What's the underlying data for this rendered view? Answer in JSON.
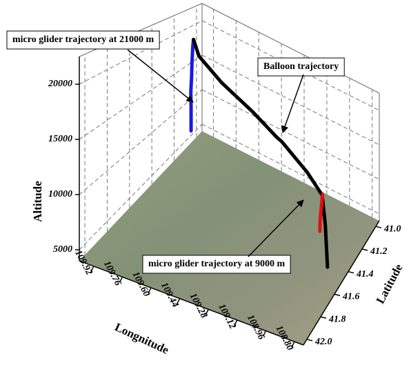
{
  "chart_data": {
    "type": "line3d",
    "xlabel": "Longnitude",
    "ylabel": "Latitude",
    "zlabel": "Altitude",
    "xlim": [
      110.0,
      108.75
    ],
    "ylim": [
      40.95,
      42.05
    ],
    "zlim": [
      4000,
      22500
    ],
    "xticks": [
      109.92,
      109.76,
      {
        "value": 109.6,
        "label": "109.60"
      },
      109.44,
      109.28,
      109.12,
      108.96,
      {
        "value": 108.8,
        "label": "108.80"
      }
    ],
    "yticks": [
      {
        "value": 41,
        "label": "41.0"
      },
      41.2,
      41.4,
      41.6,
      41.8,
      {
        "value": 42,
        "label": "42.0"
      }
    ],
    "zticks": [
      5000,
      10000,
      15000,
      20000
    ],
    "grid": true,
    "series": [
      {
        "name": "micro glider trajectory at 21000 m",
        "color": "#1a1ae0",
        "x": [
          109.85,
          109.855,
          109.86,
          109.87,
          109.875,
          109.88,
          109.88
        ],
        "y": [
          41.23,
          41.23,
          41.23,
          41.22,
          41.22,
          41.21,
          41.21
        ],
        "z": [
          21000,
          20000,
          18000,
          16000,
          14000,
          12000,
          9000
        ]
      },
      {
        "name": "Balloon trajectory",
        "color": "#000000",
        "x": [
          109.85,
          109.8,
          109.65,
          109.45,
          109.3,
          109.25,
          109.1,
          109.0,
          108.92,
          108.81
        ],
        "y": [
          41.23,
          41.25,
          41.25,
          41.24,
          41.23,
          41.26,
          41.23,
          41.23,
          41.35,
          41.56
        ],
        "z": [
          21000,
          19500,
          17500,
          15500,
          13600,
          13800,
          11000,
          9000,
          7500,
          6000
        ]
      },
      {
        "name": "micro glider trajectory at 9000 m",
        "color": "#e01010",
        "x": [
          109.0,
          109.005,
          109.01,
          109.01
        ],
        "y": [
          41.225,
          41.23,
          41.235,
          41.24
        ],
        "z": [
          9000,
          7500,
          6000,
          4500
        ]
      }
    ]
  }
}
